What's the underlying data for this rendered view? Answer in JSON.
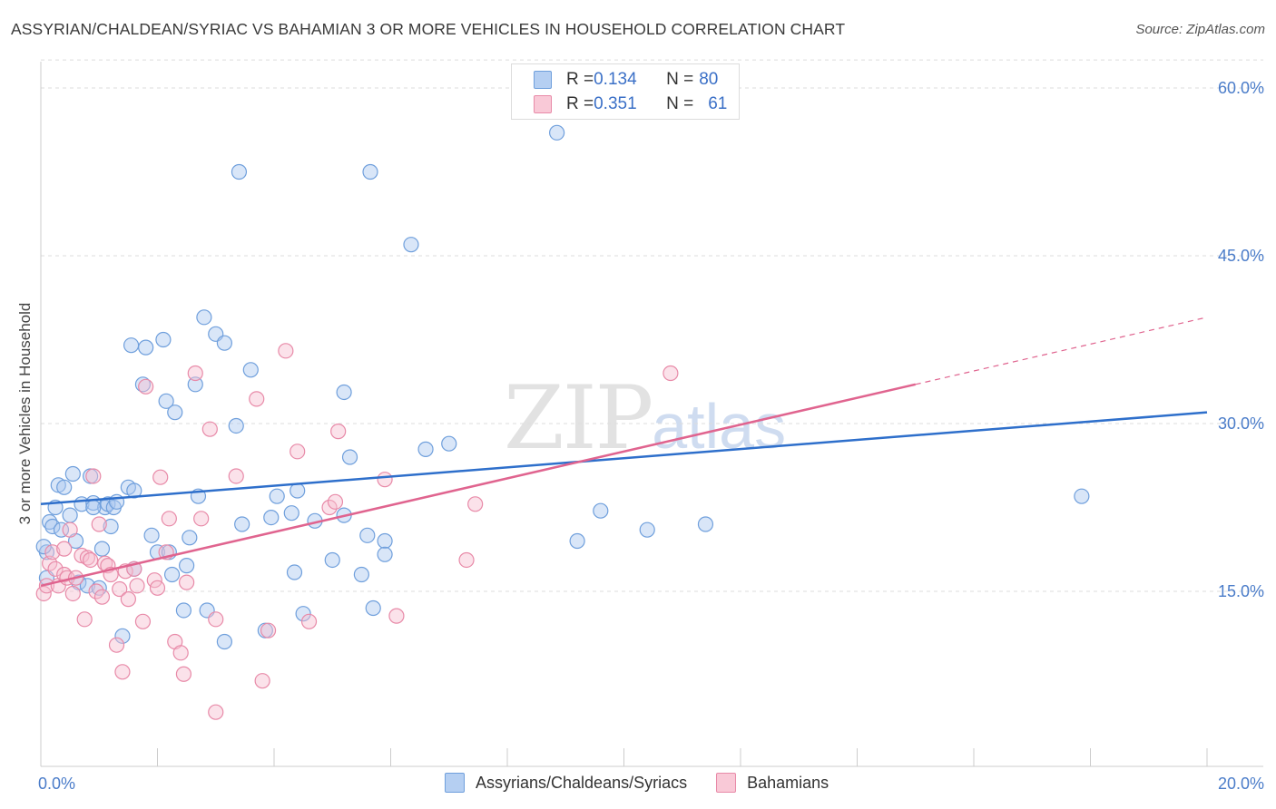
{
  "title": "ASSYRIAN/CHALDEAN/SYRIAC VS BAHAMIAN 3 OR MORE VEHICLES IN HOUSEHOLD CORRELATION CHART",
  "source": "Source: ZipAtlas.com",
  "watermark": {
    "zip": "ZIP",
    "atlas": "atlas"
  },
  "colors": {
    "blue_fill": "#aac8f0",
    "blue_stroke": "#6f9fdc",
    "blue_line": "#2e6fcb",
    "pink_fill": "#f7bfd0",
    "pink_stroke": "#e88aa8",
    "pink_line": "#e0648f",
    "tick_text": "#4a7cc9",
    "grid": "#dddddd"
  },
  "legend_top": [
    {
      "r_label": "R = ",
      "r_value": "0.134",
      "n_label": "N = ",
      "n_value": "80"
    },
    {
      "r_label": "R = ",
      "r_value": "0.351",
      "n_label": "N = ",
      "n_value": "61"
    }
  ],
  "chart_data": {
    "type": "scatter",
    "title": "ASSYRIAN/CHALDEAN/SYRIAC VS BAHAMIAN 3 OR MORE VEHICLES IN HOUSEHOLD CORRELATION CHART",
    "xlabel": "",
    "ylabel": "3 or more Vehicles in Household",
    "xlim": [
      0,
      20
    ],
    "ylim": [
      0,
      63
    ],
    "x_tick_labels": [
      "0.0%",
      "20.0%"
    ],
    "y_ticks": [
      15,
      30,
      45,
      60
    ],
    "y_tick_labels": [
      "15.0%",
      "30.0%",
      "45.0%",
      "60.0%"
    ],
    "grid": true,
    "legend_position": "bottom",
    "series": [
      {
        "name": "Assyrians/Chaldeans/Syriacs",
        "color": "#6f9fdc",
        "r": 0.134,
        "n": 80,
        "trend": {
          "x0": 0,
          "y0": 22.8,
          "x1": 20,
          "y1": 31.0
        },
        "points": [
          [
            0.1,
            16.2
          ],
          [
            0.1,
            18.5
          ],
          [
            0.15,
            21.2
          ],
          [
            0.2,
            20.8
          ],
          [
            0.25,
            22.5
          ],
          [
            0.3,
            24.5
          ],
          [
            0.35,
            20.5
          ],
          [
            0.4,
            24.3
          ],
          [
            0.5,
            21.8
          ],
          [
            0.55,
            25.5
          ],
          [
            0.6,
            19.5
          ],
          [
            0.65,
            15.8
          ],
          [
            0.7,
            22.8
          ],
          [
            0.8,
            15.5
          ],
          [
            0.85,
            25.3
          ],
          [
            0.9,
            22.9
          ],
          [
            1.0,
            15.3
          ],
          [
            1.05,
            18.8
          ],
          [
            1.1,
            22.5
          ],
          [
            1.15,
            22.8
          ],
          [
            1.2,
            20.8
          ],
          [
            1.25,
            22.5
          ],
          [
            1.3,
            23.0
          ],
          [
            1.4,
            11.0
          ],
          [
            1.5,
            24.3
          ],
          [
            1.55,
            37.0
          ],
          [
            1.6,
            17.0
          ],
          [
            1.6,
            24.0
          ],
          [
            1.75,
            33.5
          ],
          [
            1.8,
            36.8
          ],
          [
            1.9,
            20.0
          ],
          [
            2.0,
            18.5
          ],
          [
            2.1,
            37.5
          ],
          [
            2.15,
            32.0
          ],
          [
            2.2,
            18.5
          ],
          [
            2.25,
            16.5
          ],
          [
            2.3,
            31.0
          ],
          [
            2.45,
            13.3
          ],
          [
            2.5,
            17.3
          ],
          [
            2.55,
            19.8
          ],
          [
            2.65,
            33.5
          ],
          [
            2.7,
            23.5
          ],
          [
            2.8,
            39.5
          ],
          [
            2.85,
            13.3
          ],
          [
            3.0,
            38.0
          ],
          [
            3.15,
            37.2
          ],
          [
            3.15,
            10.5
          ],
          [
            3.35,
            29.8
          ],
          [
            3.4,
            52.5
          ],
          [
            3.45,
            21.0
          ],
          [
            3.6,
            34.8
          ],
          [
            3.85,
            11.5
          ],
          [
            3.95,
            21.6
          ],
          [
            4.05,
            23.5
          ],
          [
            4.3,
            22.0
          ],
          [
            4.35,
            16.7
          ],
          [
            4.4,
            24.0
          ],
          [
            4.5,
            13.0
          ],
          [
            4.7,
            21.3
          ],
          [
            5.0,
            17.8
          ],
          [
            5.2,
            32.8
          ],
          [
            5.2,
            21.8
          ],
          [
            5.3,
            27.0
          ],
          [
            5.5,
            16.5
          ],
          [
            5.6,
            20.0
          ],
          [
            5.65,
            52.5
          ],
          [
            5.7,
            13.5
          ],
          [
            5.9,
            19.5
          ],
          [
            5.9,
            18.3
          ],
          [
            6.35,
            46.0
          ],
          [
            6.6,
            27.7
          ],
          [
            7.0,
            28.2
          ],
          [
            8.85,
            56.0
          ],
          [
            9.2,
            19.5
          ],
          [
            9.6,
            22.2
          ],
          [
            10.4,
            20.5
          ],
          [
            11.4,
            21.0
          ],
          [
            17.85,
            23.5
          ],
          [
            0.05,
            19.0
          ],
          [
            0.9,
            22.5
          ]
        ]
      },
      {
        "name": "Bahamians",
        "color": "#e88aa8",
        "r": 0.351,
        "n": 61,
        "trend": {
          "x0": 0,
          "y0": 15.5,
          "x1": 15,
          "y1": 33.5
        },
        "trend_extension": {
          "x0": 15,
          "y0": 33.5,
          "x1": 20,
          "y1": 39.5
        },
        "points": [
          [
            0.05,
            14.8
          ],
          [
            0.1,
            15.5
          ],
          [
            0.15,
            17.5
          ],
          [
            0.2,
            18.5
          ],
          [
            0.25,
            17.0
          ],
          [
            0.3,
            15.5
          ],
          [
            0.4,
            16.5
          ],
          [
            0.4,
            18.8
          ],
          [
            0.45,
            16.2
          ],
          [
            0.5,
            20.5
          ],
          [
            0.55,
            14.8
          ],
          [
            0.6,
            16.2
          ],
          [
            0.7,
            18.2
          ],
          [
            0.75,
            12.5
          ],
          [
            0.8,
            18.0
          ],
          [
            0.85,
            17.8
          ],
          [
            0.9,
            25.3
          ],
          [
            0.95,
            15.0
          ],
          [
            1.0,
            21.0
          ],
          [
            1.05,
            14.5
          ],
          [
            1.1,
            17.5
          ],
          [
            1.15,
            17.3
          ],
          [
            1.2,
            16.5
          ],
          [
            1.3,
            10.2
          ],
          [
            1.35,
            15.2
          ],
          [
            1.4,
            7.8
          ],
          [
            1.45,
            16.8
          ],
          [
            1.5,
            14.3
          ],
          [
            1.6,
            17.0
          ],
          [
            1.65,
            15.5
          ],
          [
            1.75,
            12.3
          ],
          [
            1.8,
            33.3
          ],
          [
            1.95,
            16.0
          ],
          [
            2.0,
            15.3
          ],
          [
            2.05,
            25.2
          ],
          [
            2.15,
            18.5
          ],
          [
            2.2,
            21.5
          ],
          [
            2.3,
            10.5
          ],
          [
            2.4,
            9.5
          ],
          [
            2.45,
            7.6
          ],
          [
            2.5,
            15.8
          ],
          [
            2.65,
            34.5
          ],
          [
            2.75,
            21.5
          ],
          [
            2.9,
            29.5
          ],
          [
            3.0,
            12.5
          ],
          [
            3.0,
            4.2
          ],
          [
            3.35,
            25.3
          ],
          [
            3.7,
            32.2
          ],
          [
            3.8,
            7.0
          ],
          [
            3.9,
            11.5
          ],
          [
            4.2,
            36.5
          ],
          [
            4.4,
            27.5
          ],
          [
            4.6,
            12.3
          ],
          [
            4.95,
            22.5
          ],
          [
            5.05,
            23.0
          ],
          [
            5.1,
            29.3
          ],
          [
            5.9,
            25.0
          ],
          [
            6.1,
            12.8
          ],
          [
            7.3,
            17.8
          ],
          [
            7.45,
            22.8
          ],
          [
            10.8,
            34.5
          ]
        ]
      }
    ]
  }
}
